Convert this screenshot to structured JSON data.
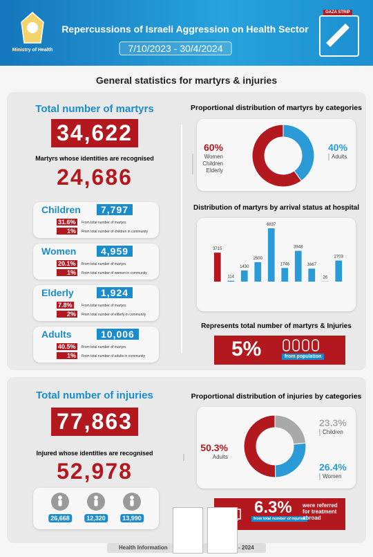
{
  "header": {
    "ministry": "Ministry of Health",
    "title": "Repercussions of Israeli Aggression on Health Sector",
    "date_range": "7/10/2023 - 30/4/2024",
    "badge": "GAZA STRIP"
  },
  "subtitle": "General statistics for martyrs & injuries",
  "martyrs": {
    "heading": "Total number of martyrs",
    "total": "34,622",
    "identified_label": "Martyrs whose identities are recognised",
    "identified": "24,686",
    "categories": [
      {
        "name": "Children",
        "count": "7,797",
        "share_of_martyrs": "31.6%",
        "share_of_martyrs_label": "From total number of martyrs",
        "share_of_community": "1%",
        "share_of_community_label": "From total number of children in community"
      },
      {
        "name": "Women",
        "count": "4,959",
        "share_of_martyrs": "20.1%",
        "share_of_martyrs_label": "From total number of martyrs",
        "share_of_community": "1%",
        "share_of_community_label": "From total number of women in community"
      },
      {
        "name": "Elderly",
        "count": "1,924",
        "share_of_martyrs": "7.8%",
        "share_of_martyrs_label": "From total number of martyrs",
        "share_of_community": "2%",
        "share_of_community_label": "From total number of elderly in community"
      },
      {
        "name": "Adults",
        "count": "10,006",
        "share_of_martyrs": "40.5%",
        "share_of_martyrs_label": "From total number of martyrs",
        "share_of_community": "1%",
        "share_of_community_label": "From total number of adults in community"
      }
    ],
    "population_heading": "Represents total number of martyrs & Injuries",
    "population_share": "5%",
    "population_label": "from population"
  },
  "injuries": {
    "heading": "Total number of injuries",
    "total": "77,863",
    "identified_label": "Injured whose identities are recognised",
    "identified": "52,978",
    "counts": [
      "26,668",
      "12,320",
      "13,990"
    ],
    "abroad_share": "6.3%",
    "abroad_share_label": "from total number of injuries",
    "abroad_label": "were referred for treatment abroad"
  },
  "footer": {
    "left": "Health Information",
    "right": "- 2024"
  },
  "chart_data": [
    {
      "type": "pie",
      "title": "Proportional distribution of martyrs by categories",
      "categories": [
        "Women Children Elderly",
        "Adults"
      ],
      "values": [
        60,
        40
      ],
      "value_labels": [
        "60%",
        "40%"
      ],
      "colors": [
        "#b3181e",
        "#2a9bd6"
      ],
      "donut": true
    },
    {
      "type": "bar",
      "title": "Distribution of martyrs by arrival status at hospital",
      "categories": [
        null,
        null,
        null,
        null,
        null,
        null,
        null,
        null,
        null,
        null
      ],
      "values": [
        3715,
        114,
        1430,
        2500,
        6837,
        1746,
        3948,
        1667,
        26,
        2703
      ],
      "colors": [
        "#b3181e",
        "#2a9bd6",
        "#2a9bd6",
        "#2a9bd6",
        "#2a9bd6",
        "#2a9bd6",
        "#2a9bd6",
        "#2a9bd6",
        "#2a9bd6",
        "#2a9bd6"
      ]
    },
    {
      "type": "pie",
      "title": "Proportional distribution of injuries by categories",
      "categories": [
        "Adults",
        "Children",
        "Women"
      ],
      "values": [
        50.3,
        23.3,
        26.4
      ],
      "value_labels": [
        "50.3%",
        "23.3%",
        "26.4%"
      ],
      "colors": [
        "#b3181e",
        "#a9a9a9",
        "#2a9bd6"
      ],
      "donut": true
    }
  ]
}
